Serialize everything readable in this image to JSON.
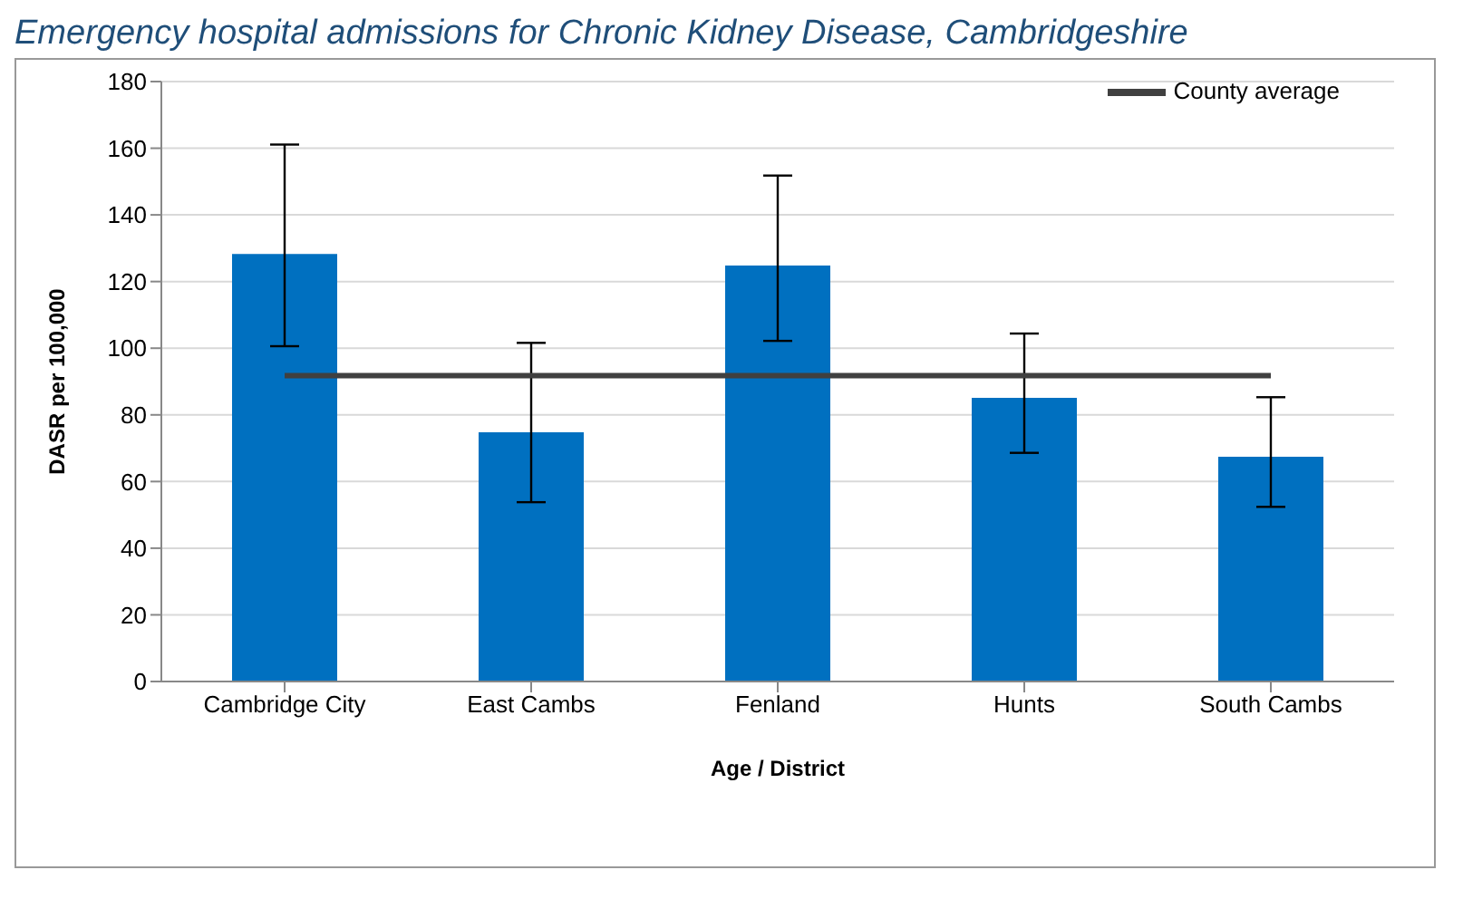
{
  "chart_data": {
    "type": "bar",
    "title": "Emergency hospital admissions for Chronic Kidney Disease, Cambridgeshire",
    "xlabel": "Age / District",
    "ylabel": "DASR per 100,000",
    "categories": [
      "Cambridge City",
      "East Cambs",
      "Fenland",
      "Hunts",
      "South Cambs"
    ],
    "series": [
      {
        "color": "#0070c0",
        "values": [
          128.3,
          74.8,
          124.8,
          85.1,
          67.4
        ],
        "errors": [
          [
            100.6,
            161.1
          ],
          [
            53.8,
            101.6
          ],
          [
            102.2,
            151.8
          ],
          [
            68.6,
            104.4
          ],
          [
            52.4,
            85.3
          ]
        ]
      },
      {
        "type": "line",
        "name": "County average",
        "color": "#404040",
        "values": [
          91.8,
          91.8,
          91.8,
          91.8,
          91.8
        ]
      }
    ],
    "ylim": [
      0,
      180
    ],
    "yticks": [
      0,
      20,
      40,
      60,
      80,
      100,
      120,
      140,
      160,
      180
    ],
    "grid": "y",
    "legend": "top right",
    "marker": "none"
  }
}
